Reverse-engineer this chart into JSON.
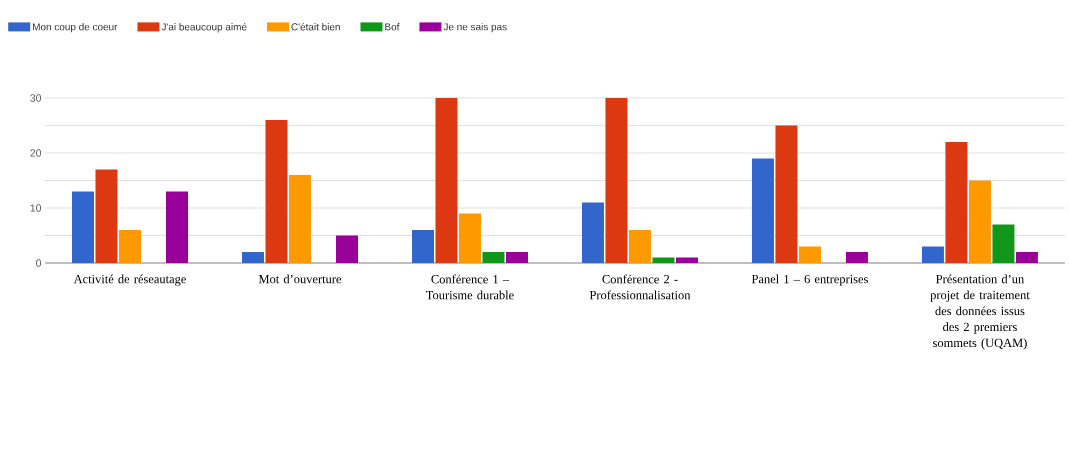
{
  "chart_data": {
    "type": "bar",
    "categories": [
      "Activité de réseautage",
      "Mot d’ouverture",
      "Conférence 1 – Tourisme durable",
      "Conférence 2 - Professionnalisation",
      "Panel 1 – 6 entreprises",
      "Présentation d’un projet de traitement des données issus des 2 premiers sommets (UQAM)"
    ],
    "series": [
      {
        "name": "Mon coup de coeur",
        "color": "#3366cc",
        "values": [
          13,
          2,
          6,
          11,
          19,
          3
        ]
      },
      {
        "name": "J'ai beaucoup aimé",
        "color": "#dc3912",
        "values": [
          17,
          26,
          30,
          30,
          25,
          22
        ]
      },
      {
        "name": "C'était bien",
        "color": "#ff9900",
        "values": [
          6,
          16,
          9,
          6,
          3,
          15
        ]
      },
      {
        "name": "Bof",
        "color": "#109618",
        "values": [
          null,
          null,
          2,
          1,
          null,
          7
        ]
      },
      {
        "name": "Je ne sais pas",
        "color": "#990099",
        "values": [
          13,
          5,
          2,
          1,
          2,
          2
        ]
      }
    ],
    "ylim": [
      0,
      30
    ],
    "yticks": [
      0,
      {
        "value": 5,
        "label": null
      },
      10,
      {
        "value": 15,
        "label": null
      },
      20,
      {
        "value": 25,
        "label": null
      },
      30
    ],
    "grid": "y",
    "legend": "top left"
  }
}
